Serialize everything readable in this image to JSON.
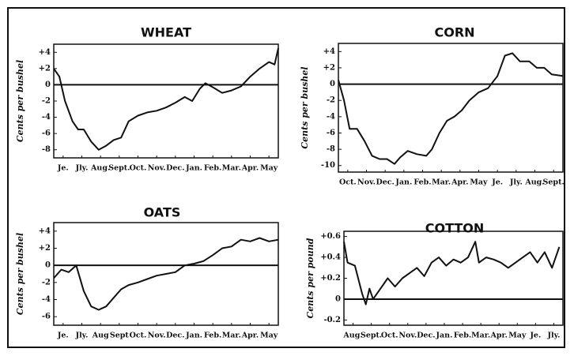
{
  "chart_data": [
    {
      "type": "line",
      "title": "WHEAT",
      "ylabel": "Cents per bushel",
      "color": "#111",
      "zero_line": true,
      "xlim": [
        0,
        12
      ],
      "ylim": [
        -9,
        5
      ],
      "xticks": [
        {
          "value": 0.5,
          "label": "Je."
        },
        {
          "value": 1.5,
          "label": "Jly."
        },
        {
          "value": 2.5,
          "label": "Aug."
        },
        {
          "value": 3.5,
          "label": "Sept."
        },
        {
          "value": 4.5,
          "label": "Oct."
        },
        {
          "value": 5.5,
          "label": "Nov."
        },
        {
          "value": 6.5,
          "label": "Dec."
        },
        {
          "value": 7.5,
          "label": "Jan."
        },
        {
          "value": 8.5,
          "label": "Feb."
        },
        {
          "value": 9.5,
          "label": "Mar."
        },
        {
          "value": 10.5,
          "label": "Apr."
        },
        {
          "value": 11.5,
          "label": "May"
        }
      ],
      "yticks": [
        {
          "value": 4,
          "label": "+4"
        },
        {
          "value": 2,
          "label": "+2"
        },
        0,
        -2,
        -4,
        -6,
        -8
      ],
      "x": [
        0,
        0.3,
        0.6,
        1,
        1.3,
        1.6,
        2,
        2.4,
        2.8,
        3.2,
        3.6,
        4,
        4.5,
        5,
        5.5,
        6,
        6.5,
        7,
        7.4,
        7.8,
        8.1,
        8.5,
        9,
        9.5,
        10,
        10.5,
        11,
        11.5,
        11.8,
        12
      ],
      "values": [
        2,
        1,
        -2,
        -4.5,
        -5.5,
        -5.5,
        -7,
        -8,
        -7.5,
        -6.8,
        -6.5,
        -4.5,
        -3.8,
        -3.4,
        -3.2,
        -2.8,
        -2.2,
        -1.5,
        -2,
        -0.5,
        0.2,
        -0.3,
        -1,
        -0.7,
        -0.2,
        1,
        2,
        2.8,
        2.5,
        4.5
      ]
    },
    {
      "type": "line",
      "title": "CORN",
      "ylabel": "Cents per bushel",
      "color": "#111",
      "zero_line": true,
      "xlim": [
        0,
        12
      ],
      "ylim": [
        -10.8,
        5
      ],
      "xticks": [
        {
          "value": 0.5,
          "label": "Oct."
        },
        {
          "value": 1.5,
          "label": "Nov."
        },
        {
          "value": 2.5,
          "label": "Dec."
        },
        {
          "value": 3.5,
          "label": "Jan."
        },
        {
          "value": 4.5,
          "label": "Feb."
        },
        {
          "value": 5.5,
          "label": "Mar."
        },
        {
          "value": 6.5,
          "label": "Apr."
        },
        {
          "value": 7.5,
          "label": "May"
        },
        {
          "value": 8.5,
          "label": "Je."
        },
        {
          "value": 9.5,
          "label": "Jly."
        },
        {
          "value": 10.5,
          "label": "Aug."
        },
        {
          "value": 11.5,
          "label": "Sept."
        }
      ],
      "yticks": [
        {
          "value": 4,
          "label": "+4"
        },
        {
          "value": 2,
          "label": "+2"
        },
        0,
        -2,
        -4,
        -6,
        -8,
        -10
      ],
      "x": [
        0,
        0.3,
        0.6,
        1,
        1.4,
        1.8,
        2.2,
        2.6,
        3,
        3.3,
        3.7,
        4.2,
        4.7,
        5,
        5.4,
        5.8,
        6.2,
        6.6,
        7,
        7.5,
        8,
        8.5,
        8.9,
        9.3,
        9.7,
        10.2,
        10.6,
        11,
        11.4,
        12
      ],
      "values": [
        0.5,
        -2,
        -5.5,
        -5.5,
        -7,
        -8.8,
        -9.2,
        -9.2,
        -9.8,
        -9,
        -8.2,
        -8.6,
        -8.8,
        -8,
        -6,
        -4.5,
        -4,
        -3.2,
        -2,
        -1,
        -0.5,
        1,
        3.5,
        3.8,
        2.8,
        2.8,
        2,
        2,
        1.2,
        1
      ]
    },
    {
      "type": "line",
      "title": "OATS",
      "ylabel": "Cents per bushel",
      "color": "#111",
      "zero_line": true,
      "xlim": [
        0,
        12
      ],
      "ylim": [
        -7,
        5
      ],
      "xticks": [
        {
          "value": 0.5,
          "label": "Je."
        },
        {
          "value": 1.5,
          "label": "Jly."
        },
        {
          "value": 2.5,
          "label": "Aug"
        },
        {
          "value": 3.5,
          "label": "Sept"
        },
        {
          "value": 4.5,
          "label": "Oct."
        },
        {
          "value": 5.5,
          "label": "Nov."
        },
        {
          "value": 6.5,
          "label": "Dec."
        },
        {
          "value": 7.5,
          "label": "Jan."
        },
        {
          "value": 8.5,
          "label": "Feb."
        },
        {
          "value": 9.5,
          "label": "Mar."
        },
        {
          "value": 10.5,
          "label": "Apr."
        },
        {
          "value": 11.5,
          "label": "May"
        }
      ],
      "yticks": [
        {
          "value": 4,
          "label": "+4"
        },
        {
          "value": 2,
          "label": "+2"
        },
        0,
        -2,
        -4,
        -6
      ],
      "x": [
        0,
        0.4,
        0.8,
        1.2,
        1.6,
        2,
        2.4,
        2.8,
        3.2,
        3.6,
        4,
        4.5,
        5,
        5.5,
        6,
        6.5,
        7,
        7.5,
        8,
        8.5,
        9,
        9.5,
        10,
        10.5,
        11,
        11.5,
        12
      ],
      "values": [
        -1.5,
        -0.5,
        -0.8,
        0,
        -3,
        -4.8,
        -5.2,
        -4.8,
        -3.8,
        -2.8,
        -2.3,
        -2,
        -1.6,
        -1.2,
        -1,
        -0.8,
        0,
        0.2,
        0.5,
        1.2,
        2,
        2.2,
        3,
        2.8,
        3.2,
        2.8,
        3
      ]
    },
    {
      "type": "line",
      "title": "COTTON",
      "ylabel": "Cents per pound",
      "color": "#111",
      "zero_line": true,
      "xlim": [
        0,
        12
      ],
      "ylim": [
        -0.25,
        0.65
      ],
      "xticks": [
        {
          "value": 0.5,
          "label": "Aug."
        },
        {
          "value": 1.5,
          "label": "Sept."
        },
        {
          "value": 2.5,
          "label": "Oct."
        },
        {
          "value": 3.5,
          "label": "Nov."
        },
        {
          "value": 4.5,
          "label": "Dec."
        },
        {
          "value": 5.5,
          "label": "Jan."
        },
        {
          "value": 6.5,
          "label": "Feb."
        },
        {
          "value": 7.5,
          "label": "Mar."
        },
        {
          "value": 8.5,
          "label": "Apr."
        },
        {
          "value": 9.5,
          "label": "May"
        },
        {
          "value": 10.5,
          "label": "Je."
        },
        {
          "value": 11.5,
          "label": "Jly."
        }
      ],
      "yticks": [
        {
          "value": 0.6,
          "label": "+0.6"
        },
        {
          "value": 0.4,
          "label": "+0.4"
        },
        {
          "value": 0.2,
          "label": "+0.2"
        },
        0,
        {
          "value": -0.2,
          "label": "-0.2"
        }
      ],
      "x": [
        0,
        0.2,
        0.6,
        1,
        1.2,
        1.4,
        1.6,
        2,
        2.4,
        2.8,
        3.2,
        3.6,
        4,
        4.4,
        4.8,
        5.2,
        5.6,
        6,
        6.4,
        6.8,
        7.2,
        7.4,
        7.8,
        8.2,
        8.6,
        9,
        9.4,
        9.8,
        10.2,
        10.6,
        11,
        11.4,
        11.8
      ],
      "values": [
        0.55,
        0.35,
        0.32,
        0.05,
        -0.05,
        0.1,
        0,
        0.1,
        0.2,
        0.12,
        0.2,
        0.25,
        0.3,
        0.22,
        0.35,
        0.4,
        0.32,
        0.38,
        0.35,
        0.4,
        0.55,
        0.35,
        0.4,
        0.38,
        0.35,
        0.3,
        0.35,
        0.4,
        0.45,
        0.35,
        0.45,
        0.3,
        0.5
      ]
    }
  ]
}
